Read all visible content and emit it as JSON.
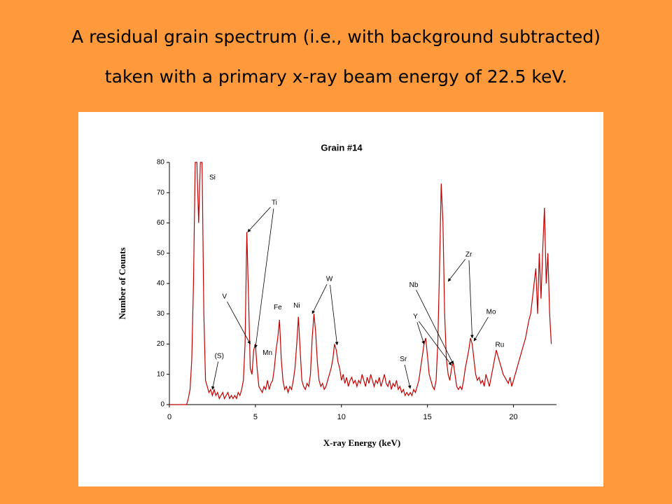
{
  "heading": [
    "A residual grain spectrum (i.e., with background subtracted)",
    "taken with a primary x-ray beam energy of 22.5 keV."
  ],
  "chart_data": {
    "type": "line",
    "title": "Grain #14",
    "x_label": "X-ray Energy (keV)",
    "y_label": "Number of Counts",
    "xlim": [
      0,
      22.5
    ],
    "ylim": [
      0,
      80
    ],
    "xticks": [
      0,
      5,
      10,
      15,
      20
    ],
    "yticks": [
      0,
      10,
      20,
      30,
      40,
      50,
      60,
      70,
      80
    ],
    "series": [
      {
        "name": "Grain #14",
        "color": "#c00000",
        "x": [
          0,
          0.1,
          0.2,
          0.3,
          0.4,
          0.5,
          0.6,
          0.7,
          0.8,
          0.9,
          1.0,
          1.1,
          1.2,
          1.3,
          1.4,
          1.5,
          1.6,
          1.7,
          1.8,
          1.9,
          2.0,
          2.1,
          2.2,
          2.3,
          2.4,
          2.5,
          2.6,
          2.7,
          2.8,
          2.9,
          3.0,
          3.1,
          3.2,
          3.3,
          3.4,
          3.5,
          3.6,
          3.7,
          3.8,
          3.9,
          4.0,
          4.1,
          4.2,
          4.3,
          4.4,
          4.5,
          4.6,
          4.7,
          4.8,
          4.9,
          5.0,
          5.1,
          5.2,
          5.3,
          5.4,
          5.5,
          5.6,
          5.7,
          5.8,
          5.9,
          6.0,
          6.1,
          6.2,
          6.3,
          6.4,
          6.5,
          6.6,
          6.7,
          6.8,
          6.9,
          7.0,
          7.1,
          7.2,
          7.3,
          7.4,
          7.5,
          7.6,
          7.7,
          7.8,
          7.9,
          8.0,
          8.1,
          8.2,
          8.3,
          8.4,
          8.5,
          8.6,
          8.7,
          8.8,
          8.9,
          9.0,
          9.1,
          9.2,
          9.3,
          9.4,
          9.5,
          9.6,
          9.7,
          9.8,
          9.9,
          10.0,
          10.1,
          10.2,
          10.3,
          10.4,
          10.5,
          10.6,
          10.7,
          10.8,
          10.9,
          11.0,
          11.1,
          11.2,
          11.3,
          11.4,
          11.5,
          11.6,
          11.7,
          11.8,
          11.9,
          12.0,
          12.1,
          12.2,
          12.3,
          12.4,
          12.5,
          12.6,
          12.7,
          12.8,
          12.9,
          13.0,
          13.1,
          13.2,
          13.3,
          13.4,
          13.5,
          13.6,
          13.7,
          13.8,
          13.9,
          14.0,
          14.1,
          14.2,
          14.3,
          14.4,
          14.5,
          14.6,
          14.7,
          14.8,
          14.9,
          15.0,
          15.1,
          15.2,
          15.3,
          15.4,
          15.5,
          15.6,
          15.7,
          15.8,
          15.9,
          16.0,
          16.1,
          16.2,
          16.3,
          16.4,
          16.5,
          16.6,
          16.7,
          16.8,
          16.9,
          17.0,
          17.1,
          17.2,
          17.3,
          17.4,
          17.5,
          17.6,
          17.7,
          17.8,
          17.9,
          18.0,
          18.1,
          18.2,
          18.3,
          18.4,
          18.5,
          18.6,
          18.7,
          18.8,
          18.9,
          19.0,
          19.1,
          19.2,
          19.3,
          19.4,
          19.5,
          19.6,
          19.7,
          19.8,
          19.9,
          20.0,
          20.1,
          20.2,
          20.3,
          20.4,
          20.5,
          20.6,
          20.7,
          20.8,
          20.9,
          21.0,
          21.1,
          21.2,
          21.3,
          21.4,
          21.5,
          21.6,
          21.7,
          21.8,
          21.9,
          22.0,
          22.1,
          22.2
        ],
        "values": [
          0,
          0,
          0,
          0,
          0,
          0,
          0,
          0,
          0,
          0,
          0,
          2,
          5,
          15,
          40,
          80,
          80,
          60,
          80,
          80,
          30,
          8,
          6,
          4,
          5,
          3,
          5,
          3,
          4,
          2,
          3,
          4,
          2,
          3,
          4,
          2,
          3,
          2,
          3,
          2,
          4,
          3,
          5,
          8,
          20,
          57,
          35,
          12,
          10,
          18,
          20,
          12,
          6,
          5,
          4,
          6,
          5,
          8,
          5,
          7,
          8,
          12,
          18,
          22,
          28,
          15,
          8,
          5,
          6,
          4,
          6,
          5,
          8,
          12,
          20,
          29,
          18,
          8,
          6,
          5,
          7,
          6,
          10,
          22,
          30,
          24,
          14,
          8,
          6,
          7,
          5,
          6,
          8,
          10,
          12,
          15,
          20,
          18,
          14,
          12,
          8,
          10,
          7,
          9,
          6,
          8,
          9,
          7,
          8,
          6,
          8,
          7,
          10,
          8,
          6,
          9,
          7,
          10,
          8,
          6,
          8,
          7,
          9,
          6,
          8,
          10,
          7,
          6,
          8,
          5,
          7,
          6,
          8,
          5,
          6,
          4,
          5,
          3,
          4,
          3,
          4,
          3,
          5,
          4,
          6,
          8,
          12,
          16,
          20,
          22,
          16,
          10,
          8,
          6,
          5,
          8,
          20,
          45,
          73,
          60,
          30,
          15,
          10,
          8,
          12,
          14,
          10,
          6,
          5,
          6,
          5,
          8,
          12,
          15,
          18,
          22,
          20,
          15,
          10,
          8,
          9,
          7,
          8,
          6,
          10,
          8,
          6,
          9,
          12,
          15,
          18,
          16,
          14,
          12,
          10,
          9,
          8,
          7,
          9,
          6,
          8,
          10,
          12,
          14,
          16,
          18,
          20,
          22,
          25,
          28,
          30,
          35,
          40,
          45,
          30,
          50,
          35,
          51,
          65,
          40,
          50,
          30,
          20
        ]
      }
    ],
    "annotations": [
      {
        "text": "Si",
        "x": 2.5,
        "y": 75,
        "targets": []
      },
      {
        "text": "Ti",
        "x": 6.1,
        "y": 66.6,
        "targets": [
          [
            4.55,
            57
          ],
          [
            5.0,
            18.7
          ]
        ]
      },
      {
        "text": "V",
        "x": 3.2,
        "y": 35.6,
        "targets": [
          [
            4.7,
            20
          ]
        ]
      },
      {
        "text": "(S)",
        "x": 2.9,
        "y": 16,
        "targets": [
          [
            2.5,
            5
          ]
        ]
      },
      {
        "text": "Mn",
        "x": 5.7,
        "y": 17,
        "targets": []
      },
      {
        "text": "Fe",
        "x": 6.3,
        "y": 32,
        "targets": []
      },
      {
        "text": "Ni",
        "x": 7.4,
        "y": 32.6,
        "targets": []
      },
      {
        "text": "W",
        "x": 9.3,
        "y": 41.4,
        "targets": [
          [
            8.3,
            30
          ],
          [
            9.75,
            19.7
          ]
        ]
      },
      {
        "text": "Sr",
        "x": 13.6,
        "y": 15,
        "targets": [
          [
            14.0,
            5.3
          ]
        ]
      },
      {
        "text": "Y",
        "x": 14.3,
        "y": 29,
        "targets": [
          [
            14.8,
            20
          ],
          [
            16.4,
            13
          ]
        ]
      },
      {
        "text": "Nb",
        "x": 14.2,
        "y": 39.5,
        "targets": [
          [
            16.5,
            13.4
          ]
        ]
      },
      {
        "text": "Zr",
        "x": 17.4,
        "y": 49.5,
        "targets": [
          [
            16.2,
            40.7
          ],
          [
            17.6,
            22
          ]
        ]
      },
      {
        "text": "Mo",
        "x": 18.7,
        "y": 30.5,
        "targets": [
          [
            17.7,
            21
          ]
        ]
      },
      {
        "text": "Ru",
        "x": 19.2,
        "y": 19.7,
        "targets": []
      }
    ]
  }
}
